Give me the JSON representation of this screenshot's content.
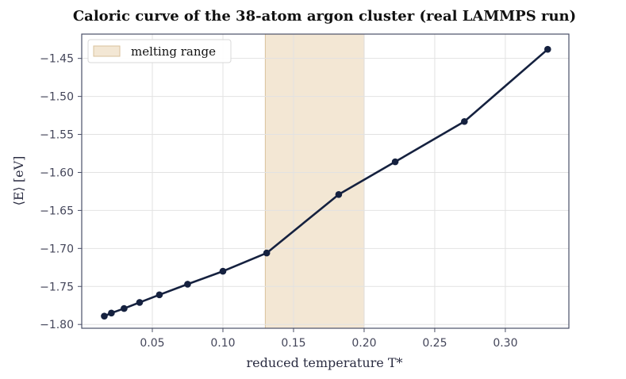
{
  "chart_data": {
    "type": "line",
    "title": "Caloric curve of the 38-atom argon cluster (real LAMMPS run)",
    "xlabel": "reduced temperature  T*",
    "ylabel": "⟨E⟩  [eV]",
    "xlim": [
      0.0,
      0.345
    ],
    "ylim": [
      -1.805,
      -1.418
    ],
    "xticks": [
      0.05,
      0.1,
      0.15,
      0.2,
      0.25,
      0.3
    ],
    "xtick_labels": [
      "0.05",
      "0.10",
      "0.15",
      "0.20",
      "0.25",
      "0.30"
    ],
    "yticks": [
      -1.8,
      -1.75,
      -1.7,
      -1.65,
      -1.6,
      -1.55,
      -1.5,
      -1.45
    ],
    "ytick_labels": [
      "−1.80",
      "−1.75",
      "−1.70",
      "−1.65",
      "−1.60",
      "−1.55",
      "−1.50",
      "−1.45"
    ],
    "grid": true,
    "legend": {
      "position": "top-left",
      "entries": [
        "melting range"
      ]
    },
    "melting_range": {
      "label": "melting range",
      "x": [
        0.13,
        0.2
      ]
    },
    "series": [
      {
        "x": [
          0.016,
          0.021,
          0.03,
          0.041,
          0.055,
          0.075,
          0.1,
          0.131,
          0.182,
          0.222,
          0.271,
          0.33
        ],
        "values": [
          -1.789,
          -1.785,
          -1.779,
          -1.771,
          -1.761,
          -1.747,
          -1.73,
          -1.706,
          -1.629,
          -1.586,
          -1.533,
          -1.438
        ]
      }
    ],
    "colors": {
      "line": "#15213f",
      "band_fill": "#f3e7d4",
      "band_edge": "#d9c29b",
      "grid": "#e2e2e2",
      "frame": "#4a4f67"
    }
  }
}
